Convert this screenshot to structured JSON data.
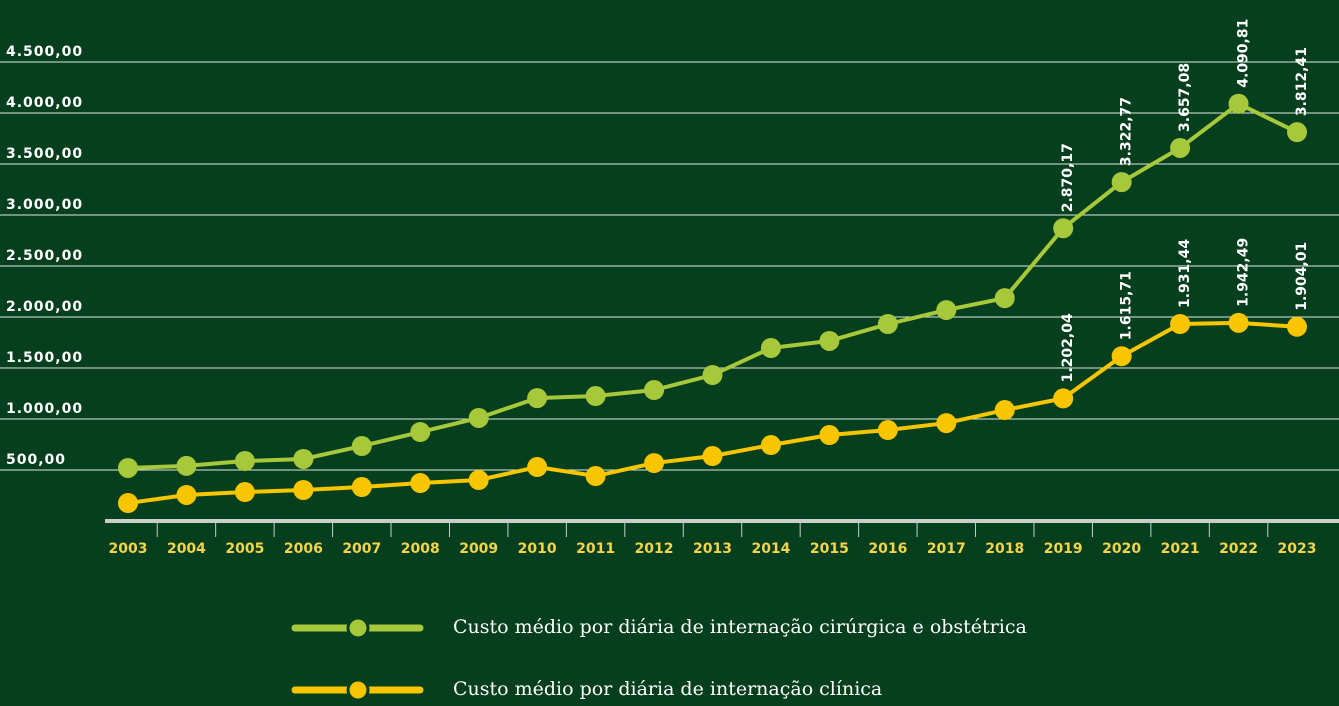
{
  "chart_data": {
    "type": "line",
    "categories": [
      "2003",
      "2004",
      "2005",
      "2006",
      "2007",
      "2008",
      "2009",
      "2010",
      "2011",
      "2012",
      "2013",
      "2014",
      "2015",
      "2016",
      "2017",
      "2018",
      "2019",
      "2020",
      "2021",
      "2022",
      "2023"
    ],
    "series": [
      {
        "name": "Custo médio por diária de internação cirúrgica e obstétrica",
        "color": "#a6c83a",
        "values": [
          520,
          540,
          588,
          608,
          735,
          872,
          1010,
          1205,
          1225,
          1284,
          1431,
          1696,
          1765,
          1931,
          2068,
          2185,
          2870.17,
          3322.77,
          3657.08,
          4090.81,
          3812.41
        ],
        "value_labels": [
          null,
          null,
          null,
          null,
          null,
          null,
          null,
          null,
          null,
          null,
          null,
          null,
          null,
          null,
          null,
          null,
          "2.870,17",
          "3.322,77",
          "3.657,08",
          "4.090,81",
          "3.812,41"
        ]
      },
      {
        "name": "Custo médio por diária de internação clínica",
        "color": "#f8c600",
        "values": [
          176,
          255,
          284,
          304,
          333,
          372,
          402,
          529,
          441,
          568,
          637,
          745,
          843,
          892,
          960,
          1088,
          1202.04,
          1615.71,
          1931.44,
          1942.49,
          1904.01
        ],
        "value_labels": [
          null,
          null,
          null,
          null,
          null,
          null,
          null,
          null,
          null,
          null,
          null,
          null,
          null,
          null,
          null,
          null,
          "1.202,04",
          "1.615,71",
          "1.931,44",
          "1.942,49",
          "1.904,01"
        ]
      }
    ],
    "ylim": [
      0,
      5000
    ],
    "yticks": [
      {
        "value": 500,
        "label": "500,00"
      },
      {
        "value": 1000,
        "label": "1.000,00"
      },
      {
        "value": 1500,
        "label": "1.500,00"
      },
      {
        "value": 2000,
        "label": "2.000,00"
      },
      {
        "value": 2500,
        "label": "2.500,00"
      },
      {
        "value": 3000,
        "label": "3.000,00"
      },
      {
        "value": 3500,
        "label": "3.500,00"
      },
      {
        "value": 4000,
        "label": "4.000,00"
      },
      {
        "value": 4500,
        "label": "4.500,00"
      }
    ],
    "grid": true
  }
}
